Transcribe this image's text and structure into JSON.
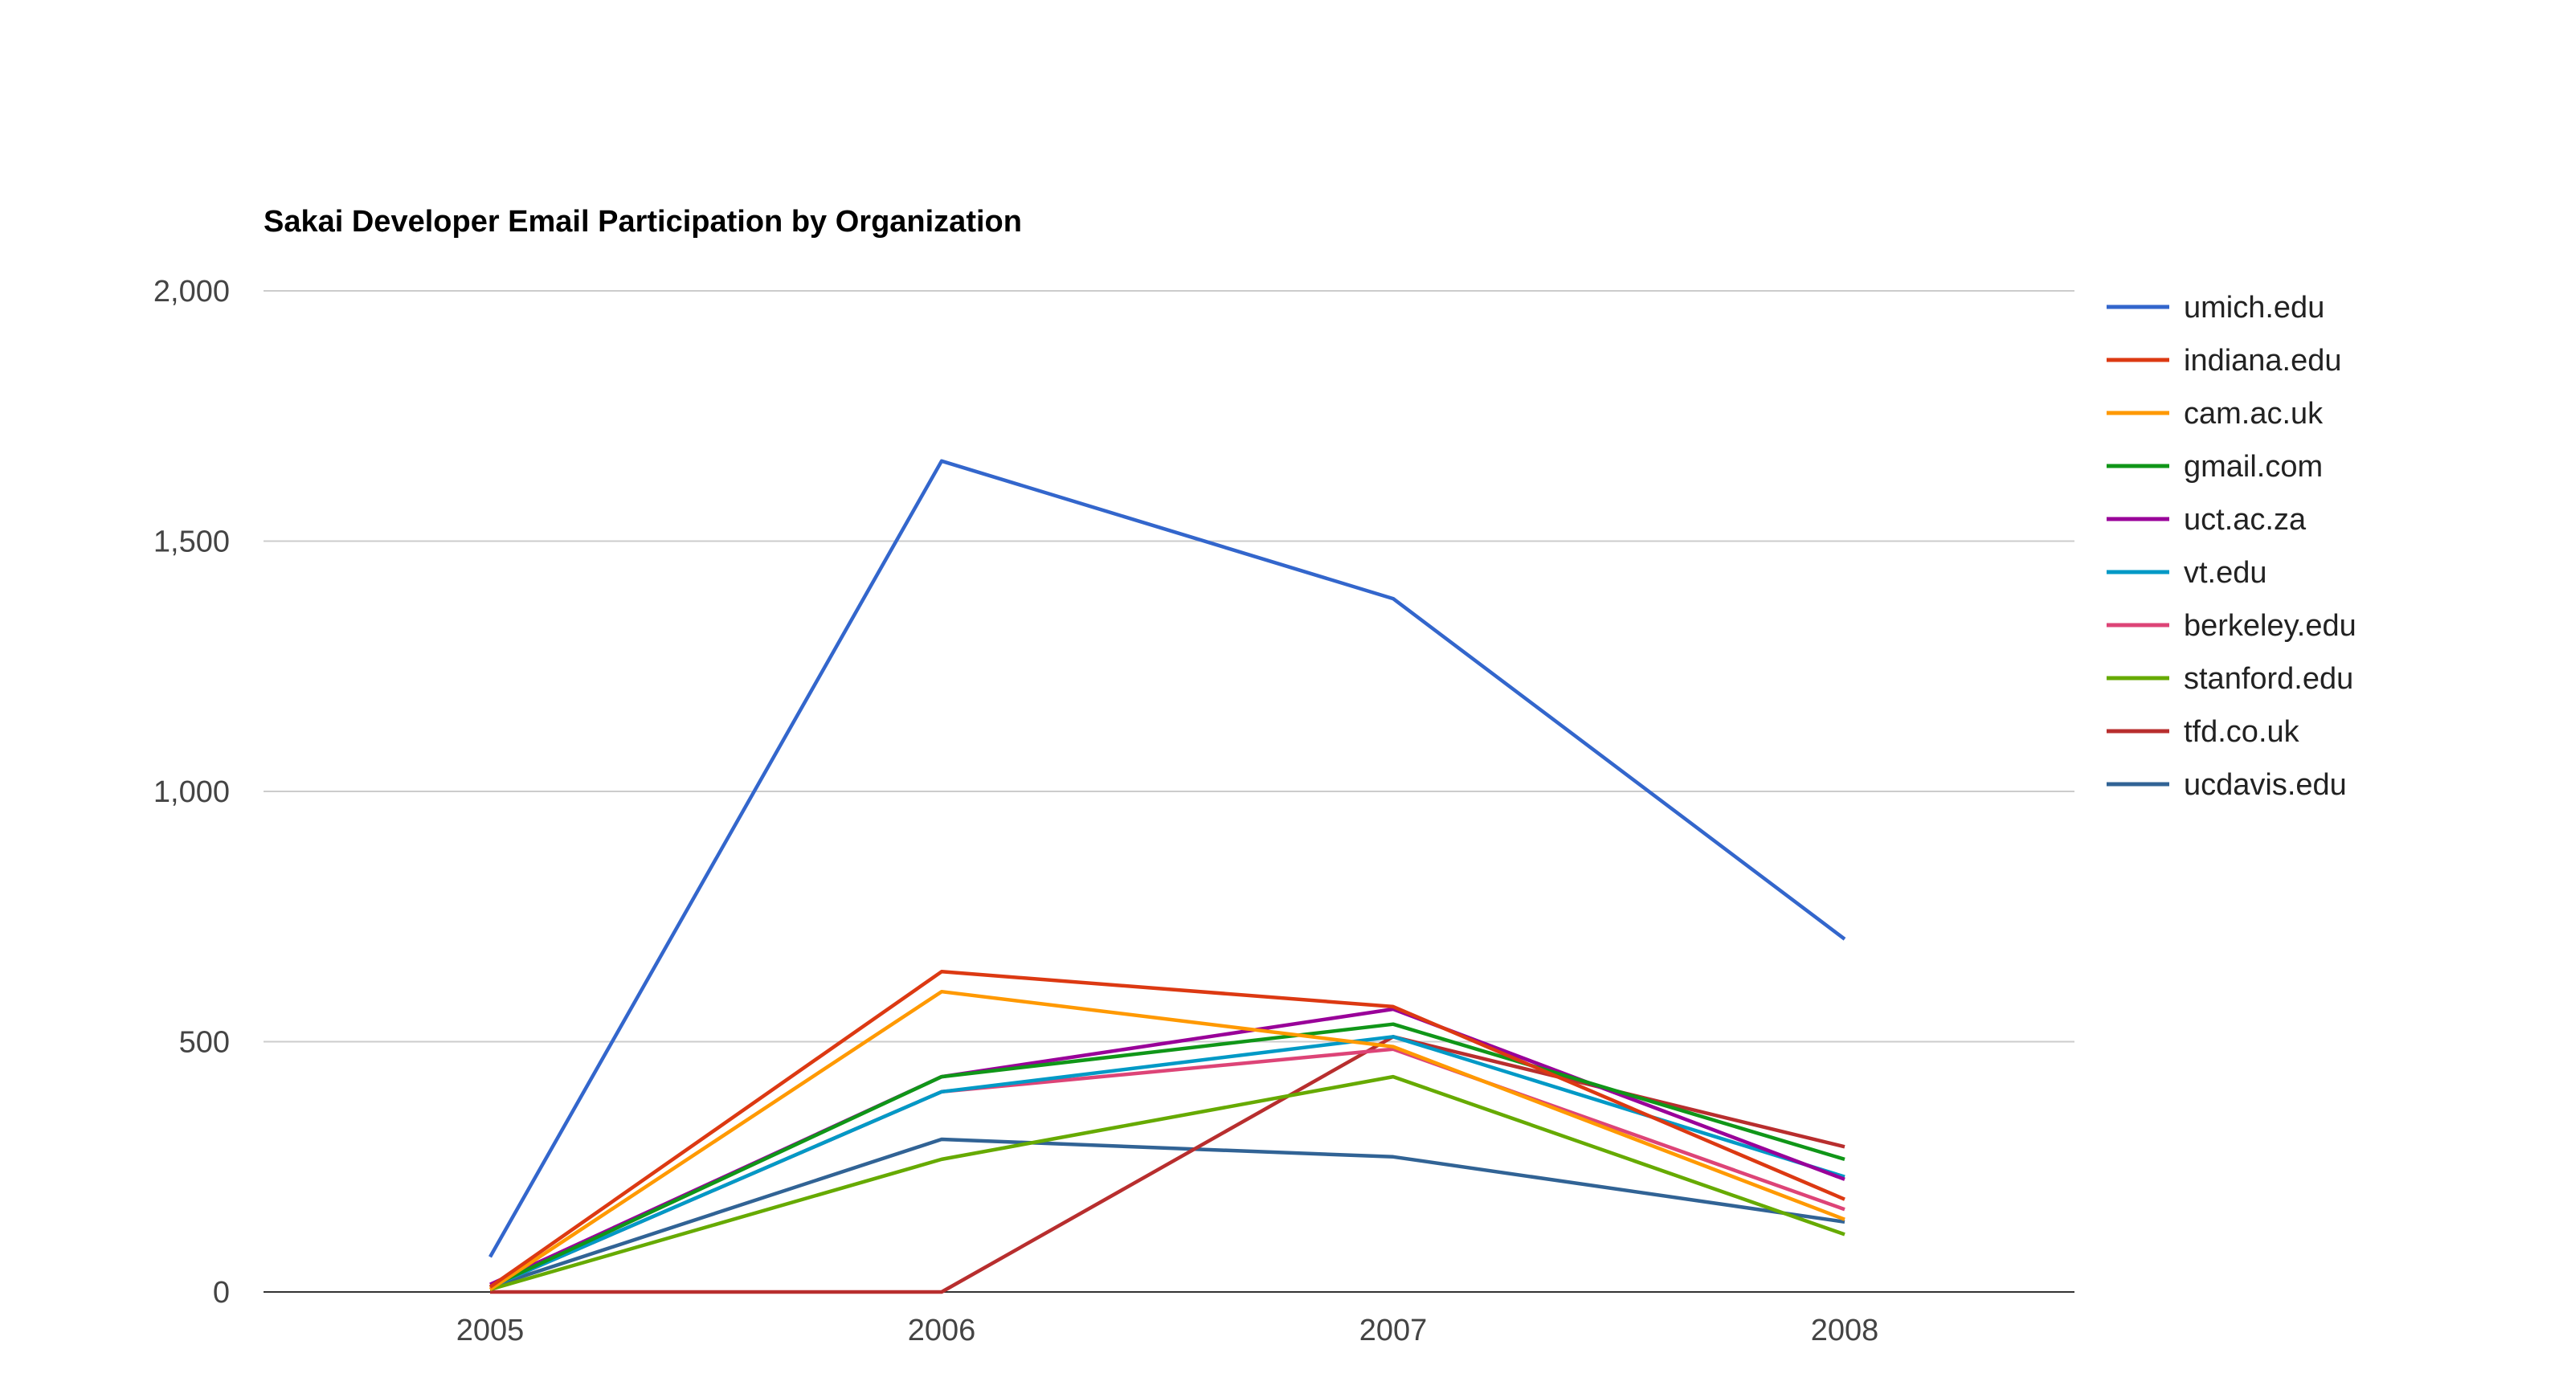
{
  "chart_data": {
    "type": "line",
    "title": "Sakai Developer Email Participation by Organization",
    "xlabel": "",
    "ylabel": "",
    "categories": [
      "2005",
      "2006",
      "2007",
      "2008"
    ],
    "ylim": [
      0,
      2000
    ],
    "yticks": [
      0,
      500,
      1000,
      1500,
      2000
    ],
    "ytick_labels": [
      "0",
      "500",
      "1,000",
      "1,500",
      "2,000"
    ],
    "grid": true,
    "legend_position": "right",
    "series": [
      {
        "name": "umich.edu",
        "color": "#3366cc",
        "values": [
          70,
          1660,
          1385,
          705
        ]
      },
      {
        "name": "indiana.edu",
        "color": "#dc3912",
        "values": [
          10,
          640,
          570,
          185
        ]
      },
      {
        "name": "cam.ac.uk",
        "color": "#ff9900",
        "values": [
          5,
          600,
          490,
          145
        ]
      },
      {
        "name": "gmail.com",
        "color": "#109618",
        "values": [
          10,
          430,
          535,
          265
        ]
      },
      {
        "name": "uct.ac.za",
        "color": "#990099",
        "values": [
          15,
          430,
          565,
          225
        ]
      },
      {
        "name": "vt.edu",
        "color": "#0099c6",
        "values": [
          10,
          400,
          510,
          230
        ]
      },
      {
        "name": "berkeley.edu",
        "color": "#dd4477",
        "values": [
          10,
          400,
          485,
          165
        ]
      },
      {
        "name": "stanford.edu",
        "color": "#66aa00",
        "values": [
          5,
          265,
          430,
          115
        ]
      },
      {
        "name": "tfd.co.uk",
        "color": "#b82e2e",
        "values": [
          0,
          0,
          510,
          290
        ]
      },
      {
        "name": "ucdavis.edu",
        "color": "#316395",
        "values": [
          10,
          305,
          270,
          140
        ]
      }
    ]
  }
}
